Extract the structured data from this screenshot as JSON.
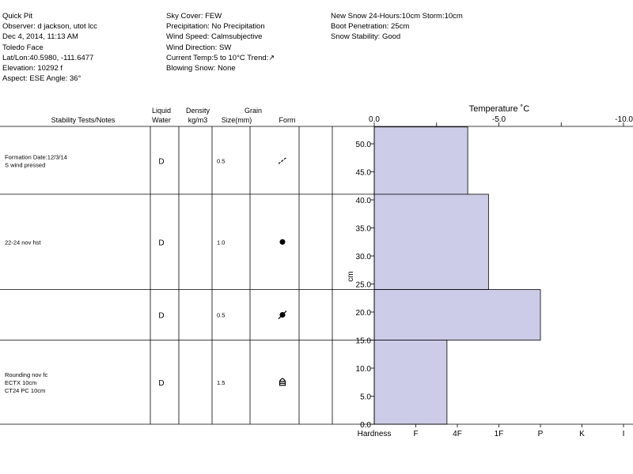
{
  "header": {
    "col1": [
      "Quick Pit",
      "Observer: d jackson, utot lcc",
      "Dec 4, 2014, 11:13 AM",
      "Toledo Face",
      "Lat/Lon:40.5980, -111.6477",
      "Elevation: 10292 f",
      "Aspect: ESE Angle: 36°"
    ],
    "col2": [
      "Sky Cover: FEW",
      "Precipitation: No Precipitation",
      "Wind Speed: Calmsubjective",
      "Wind Direction: SW",
      "Current Temp:5 to 10°C Trend:↗",
      "Blowing Snow: None"
    ],
    "col3": [
      "New Snow 24-Hours:10cm Storm:10cm",
      "Boot Penetration: 25cm",
      "Snow Stability: Good"
    ]
  },
  "table": {
    "headers": {
      "notes": "Stability Tests/Notes",
      "water1": "Liquid",
      "water2": "Water",
      "density1": "Density",
      "density2": "kg/m3",
      "grain1": "Grain",
      "grain2": "Size(mm)",
      "form": "Form"
    },
    "rows": [
      {
        "top": 53,
        "bottom": 41,
        "notes": [
          "Formation Date:12/3/14",
          "S wind pressed"
        ],
        "water": "D",
        "size": "0.5",
        "form": "wind-packed-icon"
      },
      {
        "top": 41,
        "bottom": 24,
        "notes": [
          "22-24 nov hst"
        ],
        "water": "D",
        "size": "1.0",
        "form": "rounded-grain-icon"
      },
      {
        "top": 24,
        "bottom": 15,
        "notes": [],
        "water": "D",
        "size": "0.5",
        "form": "melt-freeze-icon"
      },
      {
        "top": 15,
        "bottom": 0,
        "notes": [
          "Rounding nov fc",
          "ECTX 10cm",
          "CT24 PC 10cm"
        ],
        "water": "D",
        "size": "1.5",
        "form": "faceted-rounding-icon"
      }
    ]
  },
  "chart_data": {
    "type": "bar",
    "title": "Temperature ˚C",
    "ylabel": "cm",
    "xlabel": "Hardness",
    "ylim": [
      0,
      53
    ],
    "yticks": [
      "0.0",
      "5.0",
      "10.0",
      "15.0",
      "20.0",
      "25.0",
      "30.0",
      "35.0",
      "40.0",
      "45.0",
      "50.0"
    ],
    "temp_ticks": [
      "0.0",
      "-5.0",
      "-10.0"
    ],
    "hardness_ticks": [
      "F",
      "4F",
      "1F",
      "P",
      "K",
      "I"
    ],
    "bar_color": "#cccce8",
    "layers": [
      {
        "bottom": 41,
        "top": 53,
        "hardness": 2.25
      },
      {
        "bottom": 24,
        "top": 41,
        "hardness": 2.75
      },
      {
        "bottom": 15,
        "top": 24,
        "hardness": 4.0
      },
      {
        "bottom": 0,
        "top": 15,
        "hardness": 1.75
      }
    ]
  }
}
